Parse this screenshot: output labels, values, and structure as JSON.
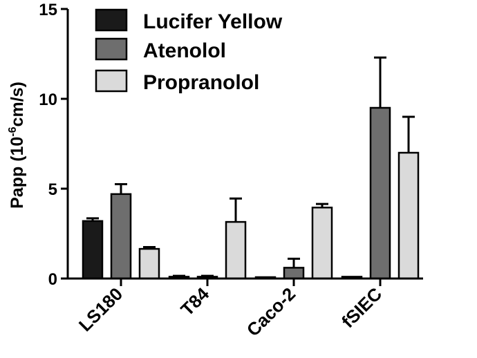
{
  "chart_data": {
    "type": "bar",
    "categories": [
      "LS180",
      "T84",
      "Caco-2",
      "fSIEC"
    ],
    "series": [
      {
        "name": "Lucifer Yellow",
        "color": "#1a1a1a",
        "values": [
          3.2,
          0.1,
          0.05,
          0.1
        ],
        "errors": [
          0.15,
          0.05,
          0.0,
          0.0
        ]
      },
      {
        "name": "Atenolol",
        "color": "#6e6e6e",
        "values": [
          4.7,
          0.1,
          0.6,
          9.5
        ],
        "errors": [
          0.55,
          0.05,
          0.5,
          2.8
        ]
      },
      {
        "name": "Propranolol",
        "color": "#dadada",
        "values": [
          1.65,
          3.15,
          3.95,
          7.0
        ],
        "errors": [
          0.1,
          1.3,
          0.2,
          2.0
        ]
      }
    ],
    "ylim": [
      0,
      15
    ],
    "yticks": [
      "0",
      "5",
      "10",
      "15"
    ],
    "ylabel": {
      "prefix": "Papp (10",
      "sup": "-6",
      "suffix": "cm/s)"
    },
    "legend": {
      "position": "top-left"
    },
    "grid": false
  }
}
